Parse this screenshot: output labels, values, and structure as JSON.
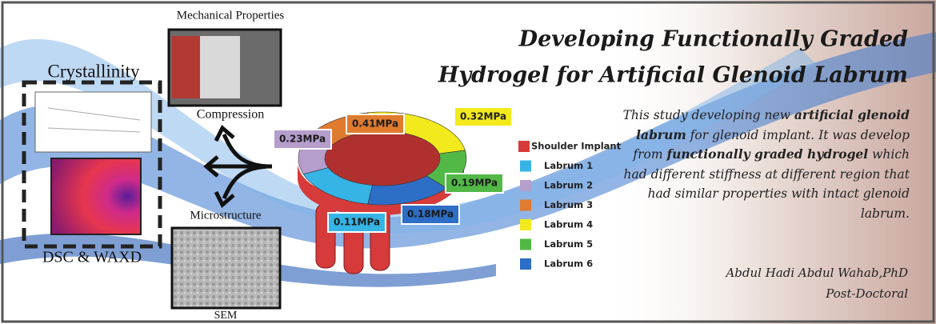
{
  "panels": {
    "mechanical": "Mechanical Properties",
    "crystallinity": "Crystallinity",
    "compression": "Compression",
    "microstructure": "Microstructure",
    "dsc": "DSC & WAXD",
    "sem": "SEM"
  },
  "title": {
    "lines": [
      "Developing Functionally Graded",
      "Hydrogel for Artificial Glenoid Labrum"
    ]
  },
  "legend": [
    {
      "name": "Shoulder Implant",
      "color": "#d63a3a"
    },
    {
      "name": "Labrum 1",
      "color": "#36b4e5",
      "stress": "0.11MPa"
    },
    {
      "name": "Labrum 2",
      "color": "#b59dcc",
      "stress": "0.23MPa"
    },
    {
      "name": "Labrum 3",
      "color": "#e07b2e",
      "stress": "0.41MPa"
    },
    {
      "name": "Labrum 4",
      "color": "#f2ea1c",
      "stress": "0.32MPa"
    },
    {
      "name": "Labrum 5",
      "color": "#52b846",
      "stress": "0.19MPa"
    },
    {
      "name": "Labrum 6",
      "color": "#2d6ec6",
      "stress": "0.18MPa"
    }
  ],
  "description": [
    {
      "text": "This study developing new ",
      "bold": false
    },
    {
      "text": "artificial glenoid labrum",
      "bold": true
    },
    {
      "text": " for glenoid implant. It was develop from ",
      "bold": false
    },
    {
      "text": "functionally graded hydrogel",
      "bold": true
    },
    {
      "text": " which had different stiffness at different region that had similar properties with intact glenoid labrum.",
      "bold": false
    }
  ],
  "author": {
    "name": "Abdul Hadi Abdul Wahab,PhD",
    "position": "Post-Doctoral"
  }
}
